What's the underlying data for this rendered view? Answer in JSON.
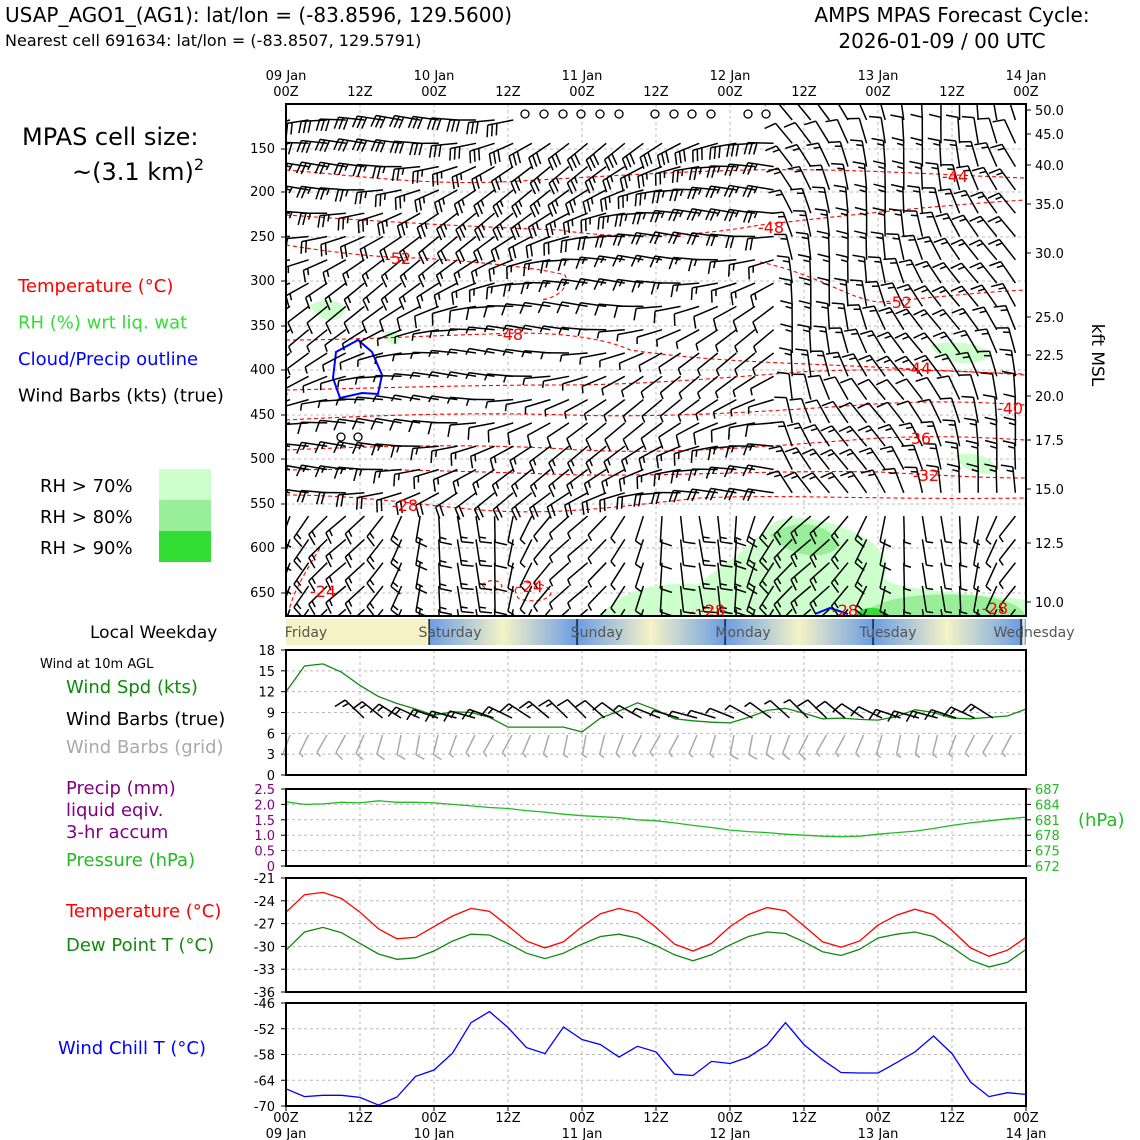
{
  "header": {
    "station_title": "USAP_AGO1_(AG1): lat/lon = (-83.8596, 129.5600)",
    "nearest_cell": "Nearest cell 691634: lat/lon = (-83.8507, 129.5791)",
    "cycle_label": "AMPS MPAS Forecast Cycle:",
    "cycle_value": "2026-01-09 / 00 UTC"
  },
  "colors": {
    "temperature": "#ff0000",
    "rh": "#33dd33",
    "cloud": "#0000ff",
    "pressure": "#22bb22",
    "precip": "#800080",
    "dewpoint": "#118811",
    "windchill": "#0000ff",
    "grid_barb": "#a9a9a9"
  },
  "time_axis": {
    "top_labels": [
      {
        "day": "09 Jan",
        "hour": "00Z"
      },
      {
        "day": "",
        "hour": "12Z"
      },
      {
        "day": "10 Jan",
        "hour": "00Z"
      },
      {
        "day": "",
        "hour": "12Z"
      },
      {
        "day": "11 Jan",
        "hour": "00Z"
      },
      {
        "day": "",
        "hour": "12Z"
      },
      {
        "day": "12 Jan",
        "hour": "00Z"
      },
      {
        "day": "",
        "hour": "12Z"
      },
      {
        "day": "13 Jan",
        "hour": "00Z"
      },
      {
        "day": "",
        "hour": "12Z"
      },
      {
        "day": "14 Jan",
        "hour": "00Z"
      }
    ],
    "weekday_title": "Local Weekday",
    "weekdays": [
      "Friday",
      "Saturday",
      "Sunday",
      "Monday",
      "Tuesday",
      "Wednesday"
    ]
  },
  "upper_panel": {
    "cell_size_label": "MPAS cell size:",
    "cell_size_value": "~(3.1 km)",
    "cell_size_exp": "2",
    "legend": [
      {
        "label": "Temperature (°C)",
        "color": "#ff0000"
      },
      {
        "label": "RH (%) wrt liq. wat",
        "color": "#33dd33"
      },
      {
        "label": "Cloud/Precip outline",
        "color": "#0000ff"
      },
      {
        "label": "Wind Barbs (kts) (true)",
        "color": "#000000"
      }
    ],
    "rh_legend": [
      {
        "label": "RH > 70%",
        "color": "#ccffcc"
      },
      {
        "label": "RH > 80%",
        "color": "#99ee99"
      },
      {
        "label": "RH > 90%",
        "color": "#33dd33"
      }
    ],
    "pressure_ticks": [
      "150",
      "200",
      "250",
      "300",
      "350",
      "400",
      "450",
      "500",
      "550",
      "600",
      "650"
    ],
    "kft_ticks": [
      "50.0",
      "45.0",
      "40.0",
      "35.0",
      "30.0",
      "25.0",
      "22.5",
      "20.0",
      "17.5",
      "15.0",
      "12.5",
      "10.0"
    ],
    "right_axis_label": "kft MSL",
    "contour_labels": [
      "-44",
      "-48",
      "-52",
      "-52",
      "-48",
      "-44",
      "-40",
      "-36",
      "-32",
      "-28",
      "-24",
      "-24",
      "-28",
      "-28",
      "-28"
    ]
  },
  "chart_data": [
    {
      "type": "line",
      "title": "Wind at 10m AGL",
      "series_labels": [
        "Wind Spd (kts)",
        "Wind Barbs (true)",
        "Wind Barbs (grid)"
      ],
      "x": [
        0,
        3,
        6,
        9,
        12,
        15,
        18,
        21,
        24,
        27,
        30,
        33,
        36,
        39,
        42,
        45,
        48,
        51,
        54,
        57,
        60,
        63,
        66,
        69,
        72,
        75,
        78,
        81,
        84,
        87,
        90,
        93,
        96,
        99,
        102,
        105,
        108,
        111,
        114,
        117,
        120
      ],
      "series": [
        {
          "name": "Wind Spd (kts)",
          "values": [
            12.0,
            15.7,
            16.0,
            14.8,
            12.9,
            11.3,
            10.3,
            9.5,
            8.6,
            9.1,
            9.0,
            8.3,
            6.9,
            6.9,
            6.9,
            6.9,
            6.2,
            8.2,
            9.2,
            10.4,
            9.4,
            8.1,
            7.8,
            7.6,
            7.5,
            8.3,
            9.3,
            9.6,
            8.9,
            8.1,
            8.2,
            8.0,
            7.9,
            8.4,
            9.4,
            9.0,
            8.2,
            8.1,
            8.3,
            8.5,
            9.5
          ]
        }
      ],
      "xlabel": "",
      "ylabel": "",
      "ylim": [
        0,
        18
      ],
      "yticks": [
        "0",
        "3",
        "6",
        "9",
        "12",
        "15",
        "18"
      ]
    },
    {
      "type": "line",
      "series_labels": [
        "Precip (mm)",
        "liquid eqiv.",
        "3-hr accum",
        "Pressure (hPa)"
      ],
      "x": [
        0,
        3,
        6,
        9,
        12,
        15,
        18,
        21,
        24,
        27,
        30,
        33,
        36,
        39,
        42,
        45,
        48,
        51,
        54,
        57,
        60,
        63,
        66,
        69,
        72,
        75,
        78,
        81,
        84,
        87,
        90,
        93,
        96,
        99,
        102,
        105,
        108,
        111,
        114,
        117,
        120
      ],
      "series": [
        {
          "name": "Pressure (hPa)",
          "values": [
            684.5,
            684.0,
            684.1,
            684.4,
            684.3,
            684.7,
            684.4,
            684.4,
            684.3,
            684.0,
            683.7,
            683.4,
            683.2,
            682.8,
            682.5,
            682.1,
            681.8,
            681.6,
            681.4,
            681.0,
            680.8,
            680.4,
            679.9,
            679.5,
            679.0,
            678.7,
            678.5,
            678.2,
            678.0,
            677.8,
            677.7,
            677.8,
            678.2,
            678.5,
            678.8,
            679.3,
            679.9,
            680.4,
            680.8,
            681.2,
            681.5
          ]
        },
        {
          "name": "Precip (mm)",
          "values": [
            0,
            0,
            0,
            0,
            0,
            0,
            0,
            0,
            0,
            0,
            0,
            0,
            0,
            0,
            0,
            0,
            0,
            0,
            0,
            0,
            0,
            0,
            0,
            0,
            0,
            0,
            0,
            0,
            0,
            0,
            0,
            0,
            0,
            0,
            0,
            0,
            0,
            0,
            0,
            0,
            0
          ]
        }
      ],
      "ylim_left": [
        0,
        2.5
      ],
      "ylim_right": [
        672,
        687
      ],
      "yticks_left": [
        "0",
        "0.5",
        "1.0",
        "1.5",
        "2.0",
        "2.5"
      ],
      "yticks_right": [
        "672",
        "675",
        "678",
        "681",
        "684",
        "687"
      ],
      "ylabel_right": "(hPa)"
    },
    {
      "type": "line",
      "series_labels": [
        "Temperature (°C)",
        "Dew Point T (°C)"
      ],
      "x": [
        0,
        3,
        6,
        9,
        12,
        15,
        18,
        21,
        24,
        27,
        30,
        33,
        36,
        39,
        42,
        45,
        48,
        51,
        54,
        57,
        60,
        63,
        66,
        69,
        72,
        75,
        78,
        81,
        84,
        87,
        90,
        93,
        96,
        99,
        102,
        105,
        108,
        111,
        114,
        117,
        120
      ],
      "series": [
        {
          "name": "Temperature (°C)",
          "values": [
            -25.5,
            -23.2,
            -22.9,
            -23.7,
            -25.5,
            -27.7,
            -29.0,
            -28.8,
            -27.4,
            -26.0,
            -25.0,
            -25.4,
            -27.3,
            -29.3,
            -30.2,
            -29.4,
            -27.4,
            -25.7,
            -25.0,
            -25.6,
            -27.5,
            -29.7,
            -30.6,
            -29.6,
            -27.4,
            -25.8,
            -24.9,
            -25.3,
            -27.3,
            -29.4,
            -30.1,
            -29.3,
            -27.2,
            -25.9,
            -25.1,
            -25.8,
            -27.9,
            -30.2,
            -31.3,
            -30.5,
            -28.8
          ]
        },
        {
          "name": "Dew Point T (°C)",
          "values": [
            -30.5,
            -28.1,
            -27.5,
            -28.2,
            -29.6,
            -31.0,
            -31.7,
            -31.5,
            -30.6,
            -29.3,
            -28.4,
            -28.5,
            -29.6,
            -30.9,
            -31.6,
            -30.9,
            -29.7,
            -28.7,
            -28.4,
            -28.9,
            -29.9,
            -31.1,
            -31.9,
            -31.1,
            -29.8,
            -28.7,
            -28.1,
            -28.3,
            -29.4,
            -30.7,
            -31.2,
            -30.4,
            -28.9,
            -28.4,
            -28.1,
            -28.7,
            -30.1,
            -31.8,
            -32.7,
            -32.1,
            -30.4
          ]
        }
      ],
      "ylim": [
        -36,
        -21
      ],
      "yticks": [
        "-36",
        "-33",
        "-30",
        "-27",
        "-24",
        "-21"
      ]
    },
    {
      "type": "line",
      "series_labels": [
        "Wind Chill T (°C)"
      ],
      "x": [
        0,
        3,
        6,
        9,
        12,
        15,
        18,
        21,
        24,
        27,
        30,
        33,
        36,
        39,
        42,
        45,
        48,
        51,
        54,
        57,
        60,
        63,
        66,
        69,
        72,
        75,
        78,
        81,
        84,
        87,
        90,
        93,
        96,
        99,
        102,
        105,
        108,
        111,
        114,
        117,
        120
      ],
      "series": [
        {
          "name": "Wind Chill T (°C)",
          "values": [
            -66.0,
            -67.8,
            -67.5,
            -67.5,
            -68.0,
            -69.8,
            -67.9,
            -63.1,
            -61.6,
            -57.7,
            -50.6,
            -48.0,
            -51.7,
            -56.4,
            -57.8,
            -51.6,
            -54.5,
            -55.7,
            -58.6,
            -56.1,
            -57.4,
            -62.6,
            -62.9,
            -59.6,
            -60.1,
            -58.6,
            -55.8,
            -50.6,
            -55.7,
            -59.2,
            -62.2,
            -62.3,
            -62.3,
            -59.9,
            -57.4,
            -53.7,
            -57.8,
            -64.4,
            -67.8,
            -66.9,
            -67.3
          ]
        }
      ],
      "ylim": [
        -70,
        -46
      ],
      "yticks": [
        "-70",
        "-64",
        "-58",
        "-52",
        "-46"
      ]
    }
  ],
  "lower_panels": {
    "wind_title": "Wind at 10m AGL",
    "wind_speed_label": "Wind Spd (kts)",
    "wind_barbs_label": "Wind Barbs (true)",
    "grid_barbs_label": "Wind Barbs (grid)",
    "precip_label_1": "Precip (mm)",
    "precip_label_2": "liquid eqiv.",
    "precip_label_3": "3-hr accum",
    "pressure_label": "Pressure (hPa)",
    "hpa_label": "(hPa)",
    "temp_label": "Temperature (°C)",
    "dewpoint_label": "Dew Point T (°C)",
    "windchill_label": "Wind Chill T (°C)"
  }
}
